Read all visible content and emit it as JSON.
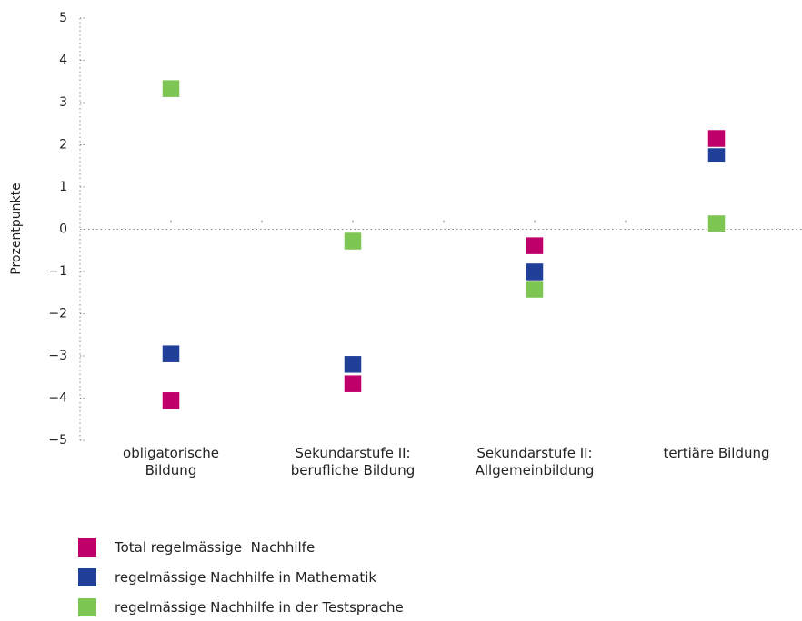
{
  "chart_data": {
    "type": "scatter",
    "y_label": "Prozentpunkte",
    "categories": [
      "obligatorische\nBildung",
      "Sekundarstufe II:\nberufliche Bildung",
      "Sekundarstufe II:\nAllgemeinbildung",
      "tertiäre Bildung"
    ],
    "ylim": [
      -5,
      5
    ],
    "yticks": [
      {
        "value": -5,
        "label": "−5"
      },
      {
        "value": -4,
        "label": "−4"
      },
      {
        "value": -3,
        "label": "−3"
      },
      {
        "value": -2,
        "label": "−2"
      },
      {
        "value": -1,
        "label": "−1"
      },
      0,
      1,
      2,
      3,
      4,
      5
    ],
    "series": [
      {
        "name": "Total regelmässige  Nachhilfe",
        "color": "#c0006a",
        "values": [
          -4.06,
          -3.66,
          -0.39,
          2.15
        ]
      },
      {
        "name": "regelmässige Nachhilfe in Mathematik",
        "color": "#1f3f99",
        "values": [
          -2.95,
          -3.2,
          -1.01,
          1.8
        ]
      },
      {
        "name": "regelmässige Nachhilfe in der Testsprache",
        "color": "#7dc653",
        "values": [
          3.33,
          -0.28,
          -1.42,
          0.13
        ]
      }
    ]
  }
}
